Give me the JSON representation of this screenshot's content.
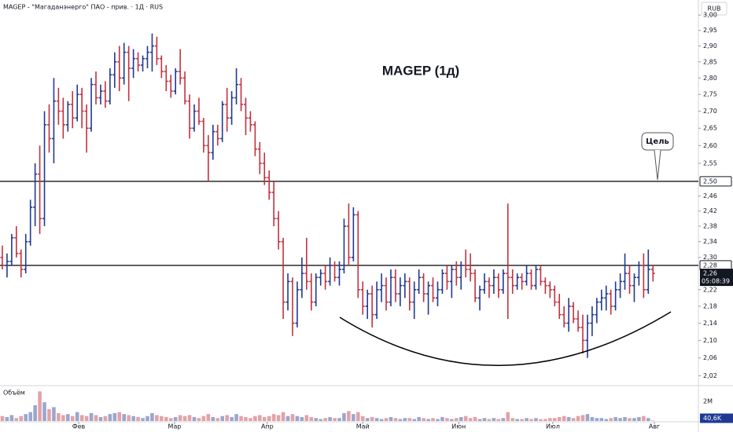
{
  "chart_data": {
    "type": "ohlc",
    "header": "MAGEP - \"Магаданэнерго\" ПАО - прив. · 1Д · RUS",
    "currency": "RUB",
    "title": "MAGEP (1д)",
    "target_label": "Цель",
    "volume_title": "Объём",
    "log_scale": true,
    "grid": false,
    "up_color": "#1f3a93",
    "down_color": "#c2313f",
    "ylim": [
      2.0,
      3.05
    ],
    "yticks": [
      {
        "value": 3.0,
        "label": "3,00"
      },
      {
        "value": 2.95,
        "label": "2,95"
      },
      {
        "value": 2.9,
        "label": "2,90"
      },
      {
        "value": 2.85,
        "label": "2,85"
      },
      {
        "value": 2.8,
        "label": "2,80"
      },
      {
        "value": 2.75,
        "label": "2,75"
      },
      {
        "value": 2.7,
        "label": "2,70"
      },
      {
        "value": 2.65,
        "label": "2,65"
      },
      {
        "value": 2.6,
        "label": "2,60"
      },
      {
        "value": 2.55,
        "label": "2,55"
      },
      {
        "value": 2.46,
        "label": "2,46"
      },
      {
        "value": 2.42,
        "label": "2,42"
      },
      {
        "value": 2.38,
        "label": "2,38"
      },
      {
        "value": 2.34,
        "label": "2,34"
      },
      {
        "value": 2.3,
        "label": "2,30"
      },
      {
        "value": 2.22,
        "label": "2,22"
      },
      {
        "value": 2.18,
        "label": "2,18"
      },
      {
        "value": 2.14,
        "label": "2,14"
      },
      {
        "value": 2.1,
        "label": "2,10"
      },
      {
        "value": 2.06,
        "label": "2,06"
      },
      {
        "value": 2.02,
        "label": "2,02"
      }
    ],
    "levels": [
      {
        "value": 2.5,
        "label": "2,50"
      },
      {
        "value": 2.28,
        "label": "2,28"
      }
    ],
    "last_price": {
      "value": 2.26,
      "label": "2,26"
    },
    "countdown": "05:08:39",
    "xlim": [
      -0.5,
      148.7
    ],
    "xticks": [
      {
        "value": 16.3,
        "label": "Фев"
      },
      {
        "value": 36.8,
        "label": "Мар"
      },
      {
        "value": 56.6,
        "label": "Апр"
      },
      {
        "value": 77,
        "label": "Май"
      },
      {
        "value": 97.5,
        "label": "Июн"
      },
      {
        "value": 117.6,
        "label": "Июл"
      },
      {
        "value": 139.3,
        "label": "Авг"
      }
    ],
    "ohlc": [
      [
        2.3,
        2.33,
        2.27,
        2.28
      ],
      [
        2.28,
        2.31,
        2.25,
        2.29
      ],
      [
        2.29,
        2.36,
        2.28,
        2.35
      ],
      [
        2.35,
        2.38,
        2.3,
        2.31
      ],
      [
        2.31,
        2.32,
        2.25,
        2.27
      ],
      [
        2.27,
        2.36,
        2.26,
        2.34
      ],
      [
        2.34,
        2.45,
        2.33,
        2.43
      ],
      [
        2.43,
        2.55,
        2.38,
        2.52
      ],
      [
        2.52,
        2.6,
        2.36,
        2.4
      ],
      [
        2.4,
        2.7,
        2.38,
        2.66
      ],
      [
        2.66,
        2.72,
        2.58,
        2.62
      ],
      [
        2.62,
        2.8,
        2.55,
        2.73
      ],
      [
        2.73,
        2.77,
        2.66,
        2.7
      ],
      [
        2.7,
        2.74,
        2.62,
        2.66
      ],
      [
        2.66,
        2.73,
        2.64,
        2.72
      ],
      [
        2.72,
        2.76,
        2.65,
        2.68
      ],
      [
        2.68,
        2.78,
        2.67,
        2.75
      ],
      [
        2.75,
        2.77,
        2.65,
        2.7
      ],
      [
        2.7,
        2.72,
        2.58,
        2.65
      ],
      [
        2.65,
        2.8,
        2.64,
        2.78
      ],
      [
        2.78,
        2.82,
        2.72,
        2.74
      ],
      [
        2.74,
        2.78,
        2.72,
        2.76
      ],
      [
        2.76,
        2.79,
        2.71,
        2.73
      ],
      [
        2.73,
        2.83,
        2.72,
        2.81
      ],
      [
        2.81,
        2.88,
        2.77,
        2.85
      ],
      [
        2.85,
        2.9,
        2.76,
        2.8
      ],
      [
        2.8,
        2.91,
        2.78,
        2.88
      ],
      [
        2.88,
        2.9,
        2.73,
        2.83
      ],
      [
        2.83,
        2.89,
        2.8,
        2.86
      ],
      [
        2.86,
        2.88,
        2.82,
        2.84
      ],
      [
        2.84,
        2.87,
        2.82,
        2.86
      ],
      [
        2.86,
        2.9,
        2.83,
        2.88
      ],
      [
        2.88,
        2.94,
        2.82,
        2.9
      ],
      [
        2.9,
        2.93,
        2.84,
        2.86
      ],
      [
        2.86,
        2.87,
        2.8,
        2.82
      ],
      [
        2.82,
        2.84,
        2.76,
        2.79
      ],
      [
        2.79,
        2.81,
        2.74,
        2.76
      ],
      [
        2.76,
        2.83,
        2.75,
        2.82
      ],
      [
        2.82,
        2.89,
        2.78,
        2.8
      ],
      [
        2.8,
        2.82,
        2.72,
        2.73
      ],
      [
        2.73,
        2.75,
        2.62,
        2.65
      ],
      [
        2.65,
        2.72,
        2.64,
        2.7
      ],
      [
        2.7,
        2.74,
        2.66,
        2.67
      ],
      [
        2.67,
        2.68,
        2.58,
        2.6
      ],
      [
        2.6,
        2.63,
        2.5,
        2.58
      ],
      [
        2.58,
        2.66,
        2.56,
        2.64
      ],
      [
        2.64,
        2.66,
        2.6,
        2.62
      ],
      [
        2.62,
        2.73,
        2.61,
        2.72
      ],
      [
        2.72,
        2.77,
        2.64,
        2.68
      ],
      [
        2.68,
        2.76,
        2.66,
        2.74
      ],
      [
        2.74,
        2.83,
        2.72,
        2.78
      ],
      [
        2.78,
        2.8,
        2.7,
        2.72
      ],
      [
        2.72,
        2.74,
        2.63,
        2.68
      ],
      [
        2.68,
        2.7,
        2.64,
        2.66
      ],
      [
        2.66,
        2.67,
        2.57,
        2.59
      ],
      [
        2.59,
        2.61,
        2.52,
        2.55
      ],
      [
        2.55,
        2.58,
        2.49,
        2.51
      ],
      [
        2.51,
        2.53,
        2.45,
        2.47
      ],
      [
        2.47,
        2.5,
        2.38,
        2.4
      ],
      [
        2.4,
        2.42,
        2.32,
        2.34
      ],
      [
        2.34,
        2.35,
        2.15,
        2.19
      ],
      [
        2.19,
        2.26,
        2.17,
        2.24
      ],
      [
        2.24,
        2.25,
        2.11,
        2.14
      ],
      [
        2.14,
        2.24,
        2.13,
        2.22
      ],
      [
        2.22,
        2.3,
        2.2,
        2.26
      ],
      [
        2.26,
        2.35,
        2.22,
        2.24
      ],
      [
        2.24,
        2.26,
        2.17,
        2.19
      ],
      [
        2.19,
        2.26,
        2.18,
        2.25
      ],
      [
        2.25,
        2.27,
        2.23,
        2.26
      ],
      [
        2.26,
        2.28,
        2.22,
        2.24
      ],
      [
        2.24,
        2.3,
        2.23,
        2.28
      ],
      [
        2.28,
        2.29,
        2.24,
        2.25
      ],
      [
        2.25,
        2.29,
        2.23,
        2.27
      ],
      [
        2.27,
        2.4,
        2.26,
        2.38
      ],
      [
        2.38,
        2.44,
        2.28,
        2.3
      ],
      [
        2.3,
        2.43,
        2.29,
        2.41
      ],
      [
        2.41,
        2.42,
        2.2,
        2.22
      ],
      [
        2.22,
        2.24,
        2.16,
        2.18
      ],
      [
        2.18,
        2.22,
        2.15,
        2.21
      ],
      [
        2.21,
        2.23,
        2.13,
        2.16
      ],
      [
        2.16,
        2.24,
        2.15,
        2.22
      ],
      [
        2.22,
        2.26,
        2.19,
        2.23
      ],
      [
        2.23,
        2.25,
        2.17,
        2.19
      ],
      [
        2.19,
        2.27,
        2.18,
        2.25
      ],
      [
        2.25,
        2.27,
        2.19,
        2.21
      ],
      [
        2.21,
        2.25,
        2.18,
        2.23
      ],
      [
        2.23,
        2.26,
        2.2,
        2.24
      ],
      [
        2.24,
        2.25,
        2.17,
        2.19
      ],
      [
        2.19,
        2.24,
        2.15,
        2.22
      ],
      [
        2.22,
        2.27,
        2.21,
        2.25
      ],
      [
        2.25,
        2.26,
        2.19,
        2.21
      ],
      [
        2.21,
        2.24,
        2.16,
        2.23
      ],
      [
        2.23,
        2.25,
        2.19,
        2.2
      ],
      [
        2.2,
        2.24,
        2.18,
        2.22
      ],
      [
        2.22,
        2.27,
        2.21,
        2.26
      ],
      [
        2.26,
        2.28,
        2.22,
        2.24
      ],
      [
        2.24,
        2.28,
        2.2,
        2.27
      ],
      [
        2.27,
        2.29,
        2.23,
        2.25
      ],
      [
        2.25,
        2.29,
        2.22,
        2.28
      ],
      [
        2.28,
        2.32,
        2.25,
        2.27
      ],
      [
        2.27,
        2.31,
        2.24,
        2.26
      ],
      [
        2.26,
        2.27,
        2.19,
        2.2
      ],
      [
        2.2,
        2.23,
        2.17,
        2.22
      ],
      [
        2.22,
        2.26,
        2.21,
        2.24
      ],
      [
        2.24,
        2.25,
        2.2,
        2.23
      ],
      [
        2.23,
        2.27,
        2.21,
        2.25
      ],
      [
        2.25,
        2.26,
        2.2,
        2.22
      ],
      [
        2.22,
        2.27,
        2.21,
        2.26
      ],
      [
        2.26,
        2.44,
        2.15,
        2.25
      ],
      [
        2.25,
        2.27,
        2.21,
        2.23
      ],
      [
        2.23,
        2.26,
        2.22,
        2.25
      ],
      [
        2.25,
        2.26,
        2.22,
        2.24
      ],
      [
        2.24,
        2.28,
        2.23,
        2.26
      ],
      [
        2.26,
        2.27,
        2.22,
        2.23
      ],
      [
        2.23,
        2.28,
        2.22,
        2.27
      ],
      [
        2.27,
        2.28,
        2.23,
        2.24
      ],
      [
        2.24,
        2.25,
        2.21,
        2.23
      ],
      [
        2.23,
        2.24,
        2.2,
        2.22
      ],
      [
        2.22,
        2.23,
        2.18,
        2.19
      ],
      [
        2.19,
        2.21,
        2.15,
        2.16
      ],
      [
        2.16,
        2.18,
        2.13,
        2.14
      ],
      [
        2.14,
        2.2,
        2.12,
        2.18
      ],
      [
        2.18,
        2.19,
        2.14,
        2.15
      ],
      [
        2.15,
        2.17,
        2.12,
        2.13
      ],
      [
        2.13,
        2.16,
        2.07,
        2.1
      ],
      [
        2.1,
        2.16,
        2.06,
        2.14
      ],
      [
        2.14,
        2.18,
        2.11,
        2.16
      ],
      [
        2.16,
        2.2,
        2.14,
        2.19
      ],
      [
        2.19,
        2.22,
        2.17,
        2.2
      ],
      [
        2.2,
        2.23,
        2.17,
        2.21
      ],
      [
        2.21,
        2.22,
        2.16,
        2.18
      ],
      [
        2.18,
        2.24,
        2.17,
        2.22
      ],
      [
        2.22,
        2.26,
        2.2,
        2.24
      ],
      [
        2.24,
        2.31,
        2.22,
        2.26
      ],
      [
        2.26,
        2.28,
        2.21,
        2.23
      ],
      [
        2.23,
        2.26,
        2.19,
        2.25
      ],
      [
        2.25,
        2.29,
        2.23,
        2.28
      ],
      [
        2.28,
        2.31,
        2.2,
        2.22
      ],
      [
        2.22,
        2.32,
        2.21,
        2.27
      ],
      [
        2.27,
        2.28,
        2.24,
        2.26
      ]
    ],
    "volume_ylim": [
      0,
      3.5
    ],
    "volume_ticks": [
      {
        "value": 2,
        "label": "2M"
      }
    ],
    "volume": [
      0.5,
      0.4,
      0.6,
      0.3,
      0.5,
      0.7,
      0.9,
      1.6,
      3.0,
      1.9,
      1.2,
      1.4,
      0.8,
      0.6,
      0.7,
      0.5,
      0.9,
      0.6,
      0.5,
      0.8,
      0.6,
      0.4,
      0.5,
      0.7,
      0.8,
      0.9,
      0.7,
      0.6,
      0.5,
      0.4,
      0.3,
      0.5,
      0.8,
      0.6,
      0.5,
      0.4,
      0.3,
      0.4,
      0.6,
      0.5,
      0.6,
      0.4,
      0.3,
      0.5,
      0.7,
      0.4,
      0.3,
      0.5,
      0.6,
      0.4,
      0.7,
      0.5,
      0.4,
      0.3,
      0.5,
      0.6,
      0.4,
      0.5,
      0.7,
      0.6,
      0.9,
      0.5,
      0.7,
      0.5,
      0.4,
      0.6,
      0.4,
      0.3,
      0.2,
      0.3,
      0.4,
      0.3,
      0.3,
      0.8,
      1.0,
      0.7,
      0.9,
      0.5,
      0.3,
      0.4,
      0.3,
      0.2,
      0.3,
      0.4,
      0.3,
      0.2,
      0.3,
      0.3,
      0.2,
      0.4,
      0.3,
      0.2,
      0.3,
      0.2,
      0.4,
      0.3,
      0.2,
      0.3,
      0.4,
      0.5,
      0.3,
      0.4,
      0.2,
      0.3,
      0.2,
      0.3,
      0.2,
      0.3,
      0.9,
      0.3,
      0.2,
      0.2,
      0.3,
      0.2,
      0.3,
      0.2,
      0.2,
      0.3,
      0.3,
      0.4,
      0.5,
      0.4,
      0.3,
      0.5,
      0.6,
      0.7,
      0.4,
      0.3,
      0.3,
      0.2,
      0.3,
      0.4,
      0.3,
      0.4,
      0.3,
      0.3,
      0.4,
      0.5,
      0.3,
      0.0406
    ],
    "volume_last": {
      "value": 0.0406,
      "label": "40,6K"
    }
  }
}
